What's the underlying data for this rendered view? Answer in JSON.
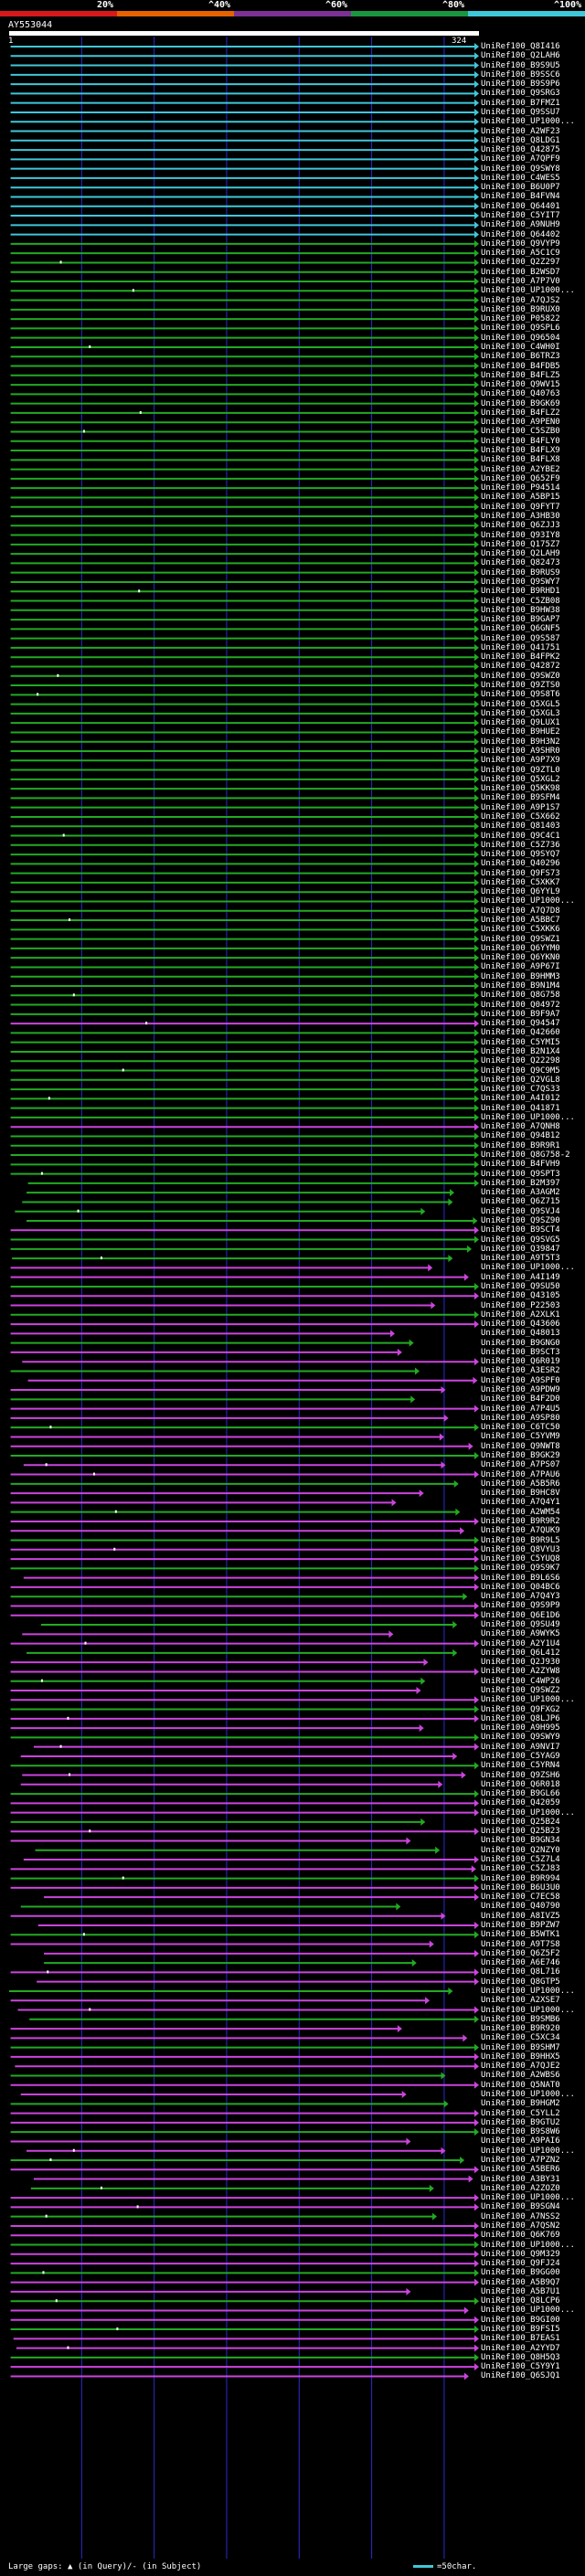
{
  "colors": {
    "background": "#000000",
    "band_0_20": "#d7191c",
    "band_20_40": "#e66101",
    "band_40_60": "#7b3294",
    "band_60_80": "#1a9641",
    "band_80_100": "#3fc7d9",
    "grid": "#2b2bd0",
    "hit_magenta": "#cc44dd",
    "hit_green": "#22aa22",
    "hit_cyan": "#3fc7d9",
    "gap_white": "#ffffff"
  },
  "legend": {
    "bands": [
      {
        "label": "20%",
        "from": 0,
        "to": 20
      },
      {
        "label": "^40%",
        "from": 20,
        "to": 40
      },
      {
        "label": "^60%",
        "from": 40,
        "to": 60
      },
      {
        "label": "^80%",
        "from": 60,
        "to": 80
      },
      {
        "label": "^100%",
        "from": 80,
        "to": 100
      }
    ]
  },
  "query": {
    "title": "AY553044",
    "start_tick": "1",
    "end_tick": "324",
    "length": 324
  },
  "chart_data": {
    "type": "alignment-overview",
    "query_length": 324,
    "identity_bands": [
      "0-20%",
      "20-40%",
      "40-60%",
      "60-80%",
      "80-100%"
    ],
    "hits": [
      "UniRef100_Q8I416",
      "UniRef100_Q2LAH6",
      "UniRef100_B9S9U5",
      "UniRef100_B9SSC6",
      "UniRef100_B9S9P6",
      "UniRef100_Q9SRG3",
      "UniRef100_B7FMZ1",
      "UniRef100_Q9SSU7",
      "UniRef100_UP1000...",
      "UniRef100_A2WF23",
      "UniRef100_Q8LDG1",
      "UniRef100_Q42875",
      "UniRef100_A7QPF9",
      "UniRef100_Q9SWY8",
      "UniRef100_C4WES5",
      "UniRef100_B6U0P7",
      "UniRef100_B4FVN4",
      "UniRef100_Q64401",
      "UniRef100_C5YIT7",
      "UniRef100_A9NUH9",
      "UniRef100_Q64402",
      "UniRef100_Q9VYP9",
      "UniRef100_A5C1C9",
      "UniRef100_Q2Z297",
      "UniRef100_B2WSD7",
      "UniRef100_A7P7V0",
      "UniRef100_UP1000...",
      "UniRef100_A7QJS2",
      "UniRef100_B9RUX0",
      "UniRef100_P05822",
      "UniRef100_Q9SPL6",
      "UniRef100_Q96504",
      "UniRef100_C4WH0I",
      "UniRef100_B6TRZ3",
      "UniRef100_B4FDB5",
      "UniRef100_B4FLZ5",
      "UniRef100_Q9WV15",
      "UniRef100_Q40763",
      "UniRef100_B9GK69",
      "UniRef100_B4FLZ2",
      "UniRef100_A9PEN0",
      "UniRef100_C5SZB0",
      "UniRef100_B4FLY0",
      "UniRef100_B4FLX9",
      "UniRef100_B4FLX8",
      "UniRef100_A2YBE2",
      "UniRef100_Q652F9",
      "UniRef100_P94514",
      "UniRef100_A5BP15",
      "UniRef100_Q9FYT7",
      "UniRef100_A3HB30",
      "UniRef100_Q6ZJJ3",
      "UniRef100_Q93IY8",
      "UniRef100_Q175Z7",
      "UniRef100_Q2LAH9",
      "UniRef100_Q82473",
      "UniRef100_B9RUS9",
      "UniRef100_Q9SWY7",
      "UniRef100_B9RHD1",
      "UniRef100_C5ZB08",
      "UniRef100_B9HW38",
      "UniRef100_B9GAP7",
      "UniRef100_Q6GNF5",
      "UniRef100_Q9S587",
      "UniRef100_Q41751",
      "UniRef100_B4FPK2",
      "UniRef100_Q42872",
      "UniRef100_Q9SWZ0",
      "UniRef100_Q9ZTS0",
      "UniRef100_Q9S8T6",
      "UniRef100_Q5XGL5",
      "UniRef100_Q5XGL3",
      "UniRef100_Q9LUX1",
      "UniRef100_B9HUE2",
      "UniRef100_B9H3N2",
      "UniRef100_A9SHR0",
      "UniRef100_A9P7X9",
      "UniRef100_Q9ZTL0",
      "UniRef100_Q5XGL2",
      "UniRef100_Q5KK98",
      "UniRef100_B9SFM4",
      "UniRef100_A9P1S7",
      "UniRef100_C5X662",
      "UniRef100_Q81403",
      "UniRef100_Q9C4C1",
      "UniRef100_C5Z736",
      "UniRef100_Q9SYQ7",
      "UniRef100_Q40296",
      "UniRef100_Q9FS73",
      "UniRef100_C5XKK7",
      "UniRef100_Q6YYL9",
      "UniRef100_UP1000...",
      "UniRef100_A7Q7D8",
      "UniRef100_A5BBC7",
      "UniRef100_C5XKK6",
      "UniRef100_Q9SWZ1",
      "UniRef100_Q6YYM0",
      "UniRef100_Q6YKN0",
      "UniRef100_A9P67I",
      "UniRef100_B9HMM3",
      "UniRef100_B9N1M4",
      "UniRef100_Q8G758",
      "UniRef100_Q04972",
      "UniRef100_B9F9A7",
      "UniRef100_Q94547",
      "UniRef100_Q42660",
      "UniRef100_C5YMI5",
      "UniRef100_B2N1X4",
      "UniRef100_Q22298",
      "UniRef100_Q9C9M5",
      "UniRef100_Q2VGL8",
      "UniRef100_C7QS33",
      "UniRef100_A4I012",
      "UniRef100_Q41871",
      "UniRef100_UP1000...",
      "UniRef100_A7QNH8",
      "UniRef100_Q94B12",
      "UniRef100_B9R9R1",
      "UniRef100_Q8G758-2",
      "UniRef100_B4FVH9",
      "UniRef100_Q9SPT3",
      "UniRef100_B2M397",
      "UniRef100_A3AGM2",
      "UniRef100_Q6Z715",
      "UniRef100_Q9SVJ4",
      "UniRef100_Q9SZ90",
      "UniRef100_B9SCT4",
      "UniRef100_Q9SVG5",
      "UniRef100_Q39847",
      "UniRef100_A9T5T3",
      "UniRef100_UP1000...",
      "UniRef100_A4I149",
      "UniRef100_Q9SU50",
      "UniRef100_Q43105",
      "UniRef100_P22503",
      "UniRef100_A2XLK1",
      "UniRef100_Q43606",
      "UniRef100_Q48013",
      "UniRef100_B9GNG0",
      "UniRef100_B9SCT3",
      "UniRef100_Q6R019",
      "UniRef100_A3ESR2",
      "UniRef100_A9SPF0",
      "UniRef100_A9PDW9",
      "UniRef100_B4F2D0",
      "UniRef100_A7P4U5",
      "UniRef100_A9SP80",
      "UniRef100_C6TC50",
      "UniRef100_C5YVM9",
      "UniRef100_Q9NWT8",
      "UniRef100_B9GK29",
      "UniRef100_A7PS07",
      "UniRef100_A7PAU6",
      "UniRef100_A5B5R6",
      "UniRef100_B9HC8V",
      "UniRef100_A7Q4Y1",
      "UniRef100_A2WM54",
      "UniRef100_B9R9R2",
      "UniRef100_A7QUK9",
      "UniRef100_B9R9L5",
      "UniRef100_Q8VYU3",
      "UniRef100_C5YUQ8",
      "UniRef100_Q9S9K7",
      "UniRef100_B9L6S6",
      "UniRef100_Q04BC6",
      "UniRef100_A7Q4Y3",
      "UniRef100_Q9S9P9",
      "UniRef100_Q6E1D6",
      "UniRef100_Q9SU49",
      "UniRef100_A9WYK5",
      "UniRef100_A2Y1U4",
      "UniRef100_Q6L412",
      "UniRef100_Q2J930",
      "UniRef100_A2ZYW8",
      "UniRef100_C4WP26",
      "UniRef100_Q9SWZ2",
      "UniRef100_UP1000...",
      "UniRef100_Q9FXG2",
      "UniRef100_Q8LJP6",
      "UniRef100_A9H995",
      "UniRef100_Q9SWY9",
      "UniRef100_A9NVI7",
      "UniRef100_C5YAG9",
      "UniRef100_C5YRN4",
      "UniRef100_Q9ZSH6",
      "UniRef100_Q6R018",
      "UniRef100_B9GL66",
      "UniRef100_Q42059",
      "UniRef100_UP1000...",
      "UniRef100_Q25B24",
      "UniRef100_Q25B23",
      "UniRef100_B9GN34",
      "UniRef100_Q2NZY0",
      "UniRef100_C5Z7L4",
      "UniRef100_C5ZJ83",
      "UniRef100_B9R994",
      "UniRef100_B6U3U0",
      "UniRef100_C7EC58",
      "UniRef100_Q40790",
      "UniRef100_A8IVZ5",
      "UniRef100_B9PZW7",
      "UniRef100_B5WTK1",
      "UniRef100_A9T7S8",
      "UniRef100_Q6Z5F2",
      "UniRef100_A6E746",
      "UniRef100_Q8L716",
      "UniRef100_Q8GTP5",
      "UniRef100_UP1000...",
      "UniRef100_A2XSE7",
      "UniRef100_UP1000...",
      "UniRef100_B9SMB6",
      "UniRef100_B9R920",
      "UniRef100_C5XC34",
      "UniRef100_B9SHM7",
      "UniRef100_B9HHX5",
      "UniRef100_A7QJE2",
      "UniRef100_A2WBS6",
      "UniRef100_Q5NAT0",
      "UniRef100_UP1000...",
      "UniRef100_B9HGM2",
      "UniRef100_C5YLL2",
      "UniRef100_B9GTU2",
      "UniRef100_B9S8W6",
      "UniRef100_A9PAI6",
      "UniRef100_UP1000...",
      "UniRef100_A7PZN2",
      "UniRef100_A5BER6",
      "UniRef100_A3BY31",
      "UniRef100_A2ZOZ0",
      "UniRef100_UP1000...",
      "UniRef100_B9SGN4",
      "UniRef100_A7NSS2",
      "UniRef100_A7QSN2",
      "UniRef100_Q6K769",
      "UniRef100_UP1000...",
      "UniRef100_Q9M329",
      "UniRef100_Q9FJ24",
      "UniRef100_B9GG00",
      "UniRef100_A5B9Q7",
      "UniRef100_A5B7U1",
      "UniRef100_Q8LCP6",
      "UniRef100_UP1000...",
      "UniRef100_B9GI00",
      "UniRef100_B9FSI5",
      "UniRef100_B7EAS1",
      "UniRef100_A2YYD7",
      "UniRef100_Q8H5Q3",
      "UniRef100_C5Y9Y1",
      "UniRef100_Q6SJQ1"
    ]
  },
  "footer": {
    "gaps_label": "Large gaps: ▲ (in Query)/- (in Subject)",
    "scale_label": "=50char."
  }
}
